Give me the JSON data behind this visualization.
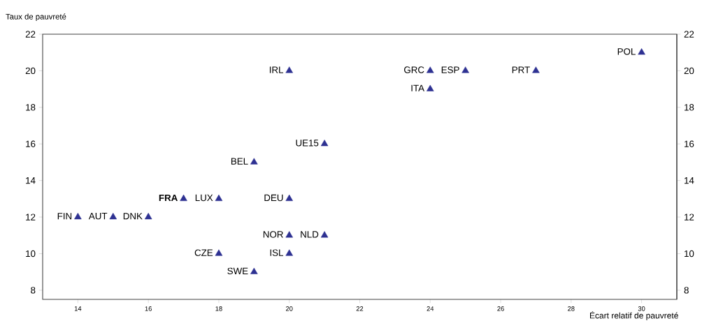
{
  "chart_data": {
    "type": "scatter",
    "xlabel": "Écart relatif de pauvreté",
    "ylabel": "Taux de pauvreté",
    "x": [
      30,
      20,
      24,
      25,
      27,
      24,
      21,
      19,
      17,
      18,
      20,
      14,
      15,
      16,
      20,
      21,
      18,
      20,
      19
    ],
    "values": [
      21,
      20,
      20,
      20,
      20,
      19,
      16,
      15,
      13,
      13,
      13,
      12,
      12,
      12,
      11,
      11,
      10,
      10,
      9
    ],
    "color": "#2e3192",
    "marker": "triangle",
    "grid": false,
    "xlim": [
      13,
      31
    ],
    "xticks": [
      14,
      16,
      18,
      20,
      22,
      24,
      26,
      28,
      30
    ],
    "ylim": [
      7.5,
      22
    ],
    "yticks": [
      8,
      10,
      12,
      14,
      16,
      18,
      20,
      22
    ],
    "y2lim": [
      7.5,
      22
    ],
    "y2ticks": [
      8,
      10,
      12,
      14,
      16,
      18,
      20,
      22
    ],
    "annotations": [
      {
        "text": "POL",
        "x": 30,
        "y": 21
      },
      {
        "text": "IRL",
        "x": 20,
        "y": 20
      },
      {
        "text": "GRC",
        "x": 24,
        "y": 20
      },
      {
        "text": "ESP",
        "x": 25,
        "y": 20
      },
      {
        "text": "PRT",
        "x": 27,
        "y": 20
      },
      {
        "text": "ITA",
        "x": 24,
        "y": 19
      },
      {
        "text": "UE15",
        "x": 21,
        "y": 16
      },
      {
        "text": "BEL",
        "x": 19,
        "y": 15
      },
      {
        "text": "**FRA**",
        "x": 17,
        "y": 13
      },
      {
        "text": "LUX",
        "x": 18,
        "y": 13
      },
      {
        "text": "DEU",
        "x": 20,
        "y": 13
      },
      {
        "text": "FIN",
        "x": 14,
        "y": 12
      },
      {
        "text": "AUT",
        "x": 15,
        "y": 12
      },
      {
        "text": "DNK",
        "x": 16,
        "y": 12
      },
      {
        "text": "NOR",
        "x": 20,
        "y": 11
      },
      {
        "text": "NLD",
        "x": 21,
        "y": 11
      },
      {
        "text": "CZE",
        "x": 18,
        "y": 10
      },
      {
        "text": "ISL",
        "x": 20,
        "y": 10
      },
      {
        "text": "SWE",
        "x": 19,
        "y": 9
      }
    ]
  }
}
